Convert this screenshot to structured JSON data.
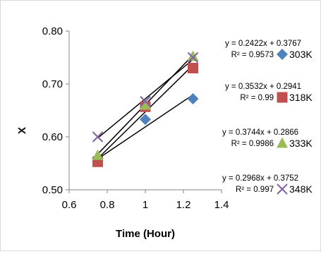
{
  "chart_data": {
    "type": "scatter",
    "xlabel": "Time (Hour)",
    "ylabel": "X",
    "xlim": [
      0.6,
      1.4
    ],
    "ylim": [
      0.5,
      0.8
    ],
    "xticks": [
      "0.6",
      "0.8",
      "1",
      "1.2",
      "1.4"
    ],
    "yticks": [
      "0.50",
      "0.60",
      "0.70",
      "0.80"
    ],
    "grid": false,
    "series": [
      {
        "name": "303K",
        "marker": "diamond",
        "color": "#4F81BD",
        "x": [
          0.75,
          1.0,
          1.25
        ],
        "y": [
          0.555,
          0.633,
          0.672
        ],
        "trendline": {
          "slope": 0.2422,
          "intercept": 0.3767,
          "equation": "y = 0.2422x + 0.3767",
          "r2": "R² = 0.9573"
        }
      },
      {
        "name": "318K",
        "marker": "square",
        "color": "#C0504D",
        "x": [
          0.75,
          1.0,
          1.25
        ],
        "y": [
          0.553,
          0.657,
          0.73
        ],
        "trendline": {
          "slope": 0.3532,
          "intercept": 0.2941,
          "equation": "y = 0.3532x + 0.2941",
          "r2": "R² = 0.99"
        }
      },
      {
        "name": "333K",
        "marker": "triangle",
        "color": "#9BBB59",
        "x": [
          0.75,
          1.0,
          1.25
        ],
        "y": [
          0.565,
          0.66,
          0.752
        ],
        "trendline": {
          "slope": 0.3744,
          "intercept": 0.2866,
          "equation": "y = 0.3744x + 0.2866",
          "r2": "R² = 0.9986"
        }
      },
      {
        "name": "348K",
        "marker": "x",
        "color": "#8064A2",
        "x": [
          0.75,
          1.0,
          1.25
        ],
        "y": [
          0.6,
          0.667,
          0.75
        ],
        "trendline": {
          "slope": 0.2968,
          "intercept": 0.3752,
          "equation": "y = 0.2968x + 0.3752",
          "r2": "R² = 0.997"
        }
      }
    ]
  }
}
